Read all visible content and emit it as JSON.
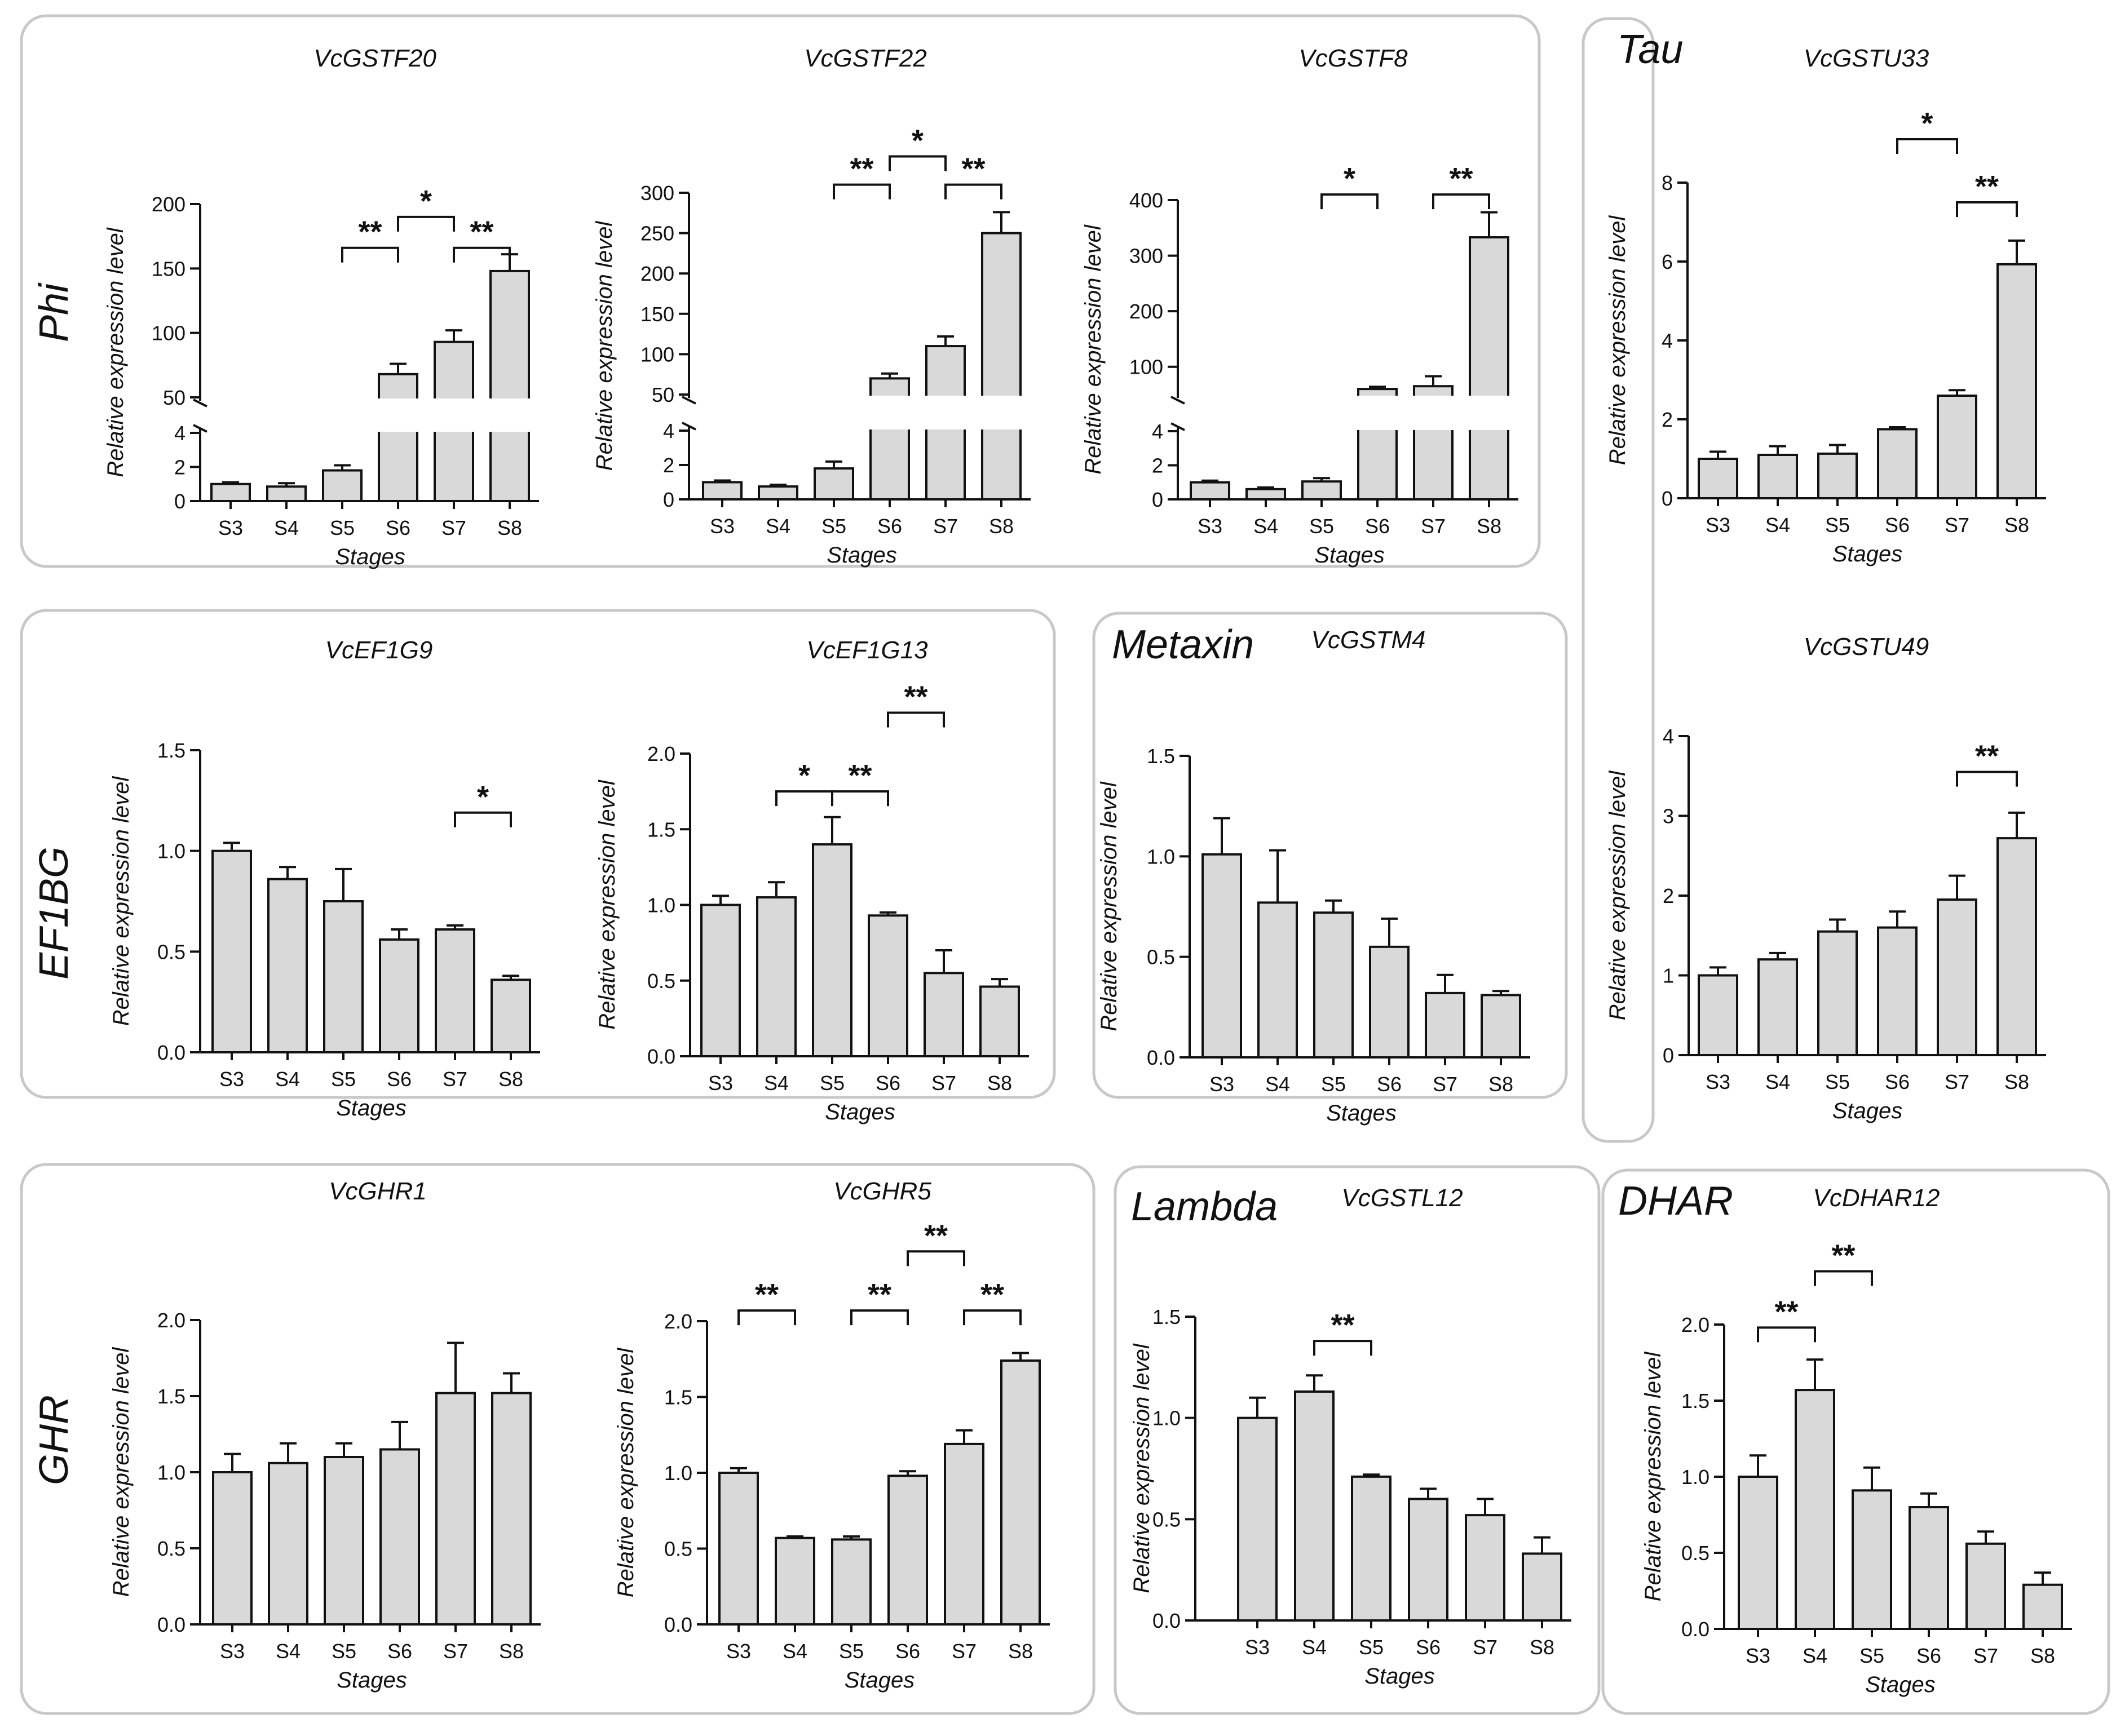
{
  "figure": {
    "y_axis_label": "Relative expression level",
    "x_axis_label": "Stages",
    "stages": [
      "S3",
      "S4",
      "S5",
      "S6",
      "S7",
      "S8"
    ],
    "bar_color": "#d9d9d9",
    "frame_color": "#c8c8c8"
  },
  "groups": [
    {
      "id": "phi",
      "label": "Phi"
    },
    {
      "id": "tau",
      "label": "Tau"
    },
    {
      "id": "ef1bg",
      "label": "EF1BG"
    },
    {
      "id": "metaxin",
      "label": "Metaxin"
    },
    {
      "id": "ghr",
      "label": "GHR"
    },
    {
      "id": "lambda",
      "label": "Lambda"
    },
    {
      "id": "dhar",
      "label": "DHAR"
    }
  ],
  "chart_data": [
    {
      "type": "bar",
      "title": "VcGSTF20",
      "xlabel": "Stages",
      "ylabel": "Relative expression level",
      "categories": [
        "S3",
        "S4",
        "S5",
        "S6",
        "S7",
        "S8"
      ],
      "values": [
        1.0,
        0.85,
        1.8,
        68,
        93,
        148
      ],
      "errors": [
        0.1,
        0.2,
        0.3,
        8,
        9,
        13
      ],
      "axis_break": {
        "lower": [
          0,
          4
        ],
        "upper": [
          50,
          200
        ]
      },
      "y_ticks_lower": [
        "0",
        "2",
        "4"
      ],
      "y_ticks_upper": [
        "50",
        "100",
        "150",
        "200"
      ],
      "significance": [
        {
          "from": "S5",
          "to": "S6",
          "label": "**",
          "y": 166
        },
        {
          "from": "S7",
          "to": "S8",
          "label": "**",
          "y": 166
        },
        {
          "from": "S6",
          "to": "S7",
          "label": "*",
          "y": 190
        }
      ]
    },
    {
      "type": "bar",
      "title": "VcGSTF22",
      "xlabel": "Stages",
      "ylabel": "Relative expression level",
      "categories": [
        "S3",
        "S4",
        "S5",
        "S6",
        "S7",
        "S8"
      ],
      "values": [
        1.0,
        0.75,
        1.8,
        70,
        110,
        250
      ],
      "errors": [
        0.1,
        0.1,
        0.4,
        6,
        12,
        26
      ],
      "axis_break": {
        "lower": [
          0,
          4
        ],
        "upper": [
          50,
          300
        ]
      },
      "y_ticks_lower": [
        "0",
        "2",
        "4"
      ],
      "y_ticks_upper": [
        "50",
        "100",
        "150",
        "200",
        "250",
        "300"
      ],
      "significance": [
        {
          "from": "S5",
          "to": "S6",
          "label": "**",
          "y": 310
        },
        {
          "from": "S7",
          "to": "S8",
          "label": "**",
          "y": 310
        },
        {
          "from": "S6",
          "to": "S7",
          "label": "*",
          "y": 345
        }
      ]
    },
    {
      "type": "bar",
      "title": "VcGSTF8",
      "xlabel": "Stages",
      "ylabel": "Relative expression level",
      "categories": [
        "S3",
        "S4",
        "S5",
        "S6",
        "S7",
        "S8"
      ],
      "values": [
        1.0,
        0.6,
        1.05,
        60,
        65,
        333
      ],
      "errors": [
        0.1,
        0.1,
        0.2,
        4,
        18,
        45
      ],
      "axis_break": {
        "lower": [
          0,
          4
        ],
        "upper": [
          50,
          400
        ]
      },
      "y_ticks_lower": [
        "0",
        "2",
        "4"
      ],
      "y_ticks_upper": [
        "100",
        "200",
        "300",
        "400"
      ],
      "significance": [
        {
          "from": "S5",
          "to": "S6",
          "label": "*",
          "y": 410
        },
        {
          "from": "S7",
          "to": "S8",
          "label": "**",
          "y": 410
        }
      ]
    },
    {
      "type": "bar",
      "title": "VcGSTU33",
      "xlabel": "Stages",
      "ylabel": "Relative expression level",
      "categories": [
        "S3",
        "S4",
        "S5",
        "S6",
        "S7",
        "S8"
      ],
      "values": [
        1.0,
        1.1,
        1.13,
        1.75,
        2.6,
        5.93
      ],
      "errors": [
        0.18,
        0.22,
        0.22,
        0.05,
        0.14,
        0.6
      ],
      "ylim": [
        0,
        8
      ],
      "y_ticks": [
        "0",
        "2",
        "4",
        "6",
        "8"
      ],
      "significance": [
        {
          "from": "S7",
          "to": "S8",
          "label": "**",
          "y": 7.5
        },
        {
          "from": "S6",
          "to": "S7",
          "label": "*",
          "y": 9.1
        }
      ]
    },
    {
      "type": "bar",
      "title": "VcEF1G9",
      "xlabel": "Stages",
      "ylabel": "Relative expression level",
      "categories": [
        "S3",
        "S4",
        "S5",
        "S6",
        "S7",
        "S8"
      ],
      "values": [
        1.0,
        0.86,
        0.75,
        0.56,
        0.61,
        0.36
      ],
      "errors": [
        0.04,
        0.06,
        0.16,
        0.05,
        0.02,
        0.02
      ],
      "ylim": [
        0,
        1.5
      ],
      "y_ticks": [
        "0.0",
        "0.5",
        "1.0",
        "1.5"
      ],
      "significance": [
        {
          "from": "S7",
          "to": "S8",
          "label": "*",
          "y": 1.19
        }
      ]
    },
    {
      "type": "bar",
      "title": "VcEF1G13",
      "xlabel": "Stages",
      "ylabel": "Relative expression level",
      "categories": [
        "S3",
        "S4",
        "S5",
        "S6",
        "S7",
        "S8"
      ],
      "values": [
        1.0,
        1.05,
        1.4,
        0.93,
        0.55,
        0.46
      ],
      "errors": [
        0.06,
        0.1,
        0.18,
        0.02,
        0.15,
        0.05
      ],
      "ylim": [
        0,
        2.0
      ],
      "y_ticks": [
        "0.0",
        "0.5",
        "1.0",
        "1.5",
        "2.0"
      ],
      "significance": [
        {
          "from": "S4",
          "to": "S5",
          "label": "*",
          "y": 1.75
        },
        {
          "from": "S5",
          "to": "S6",
          "label": "**",
          "y": 1.75
        },
        {
          "from": "S6",
          "to": "S7",
          "label": "**",
          "y": 2.27
        }
      ]
    },
    {
      "type": "bar",
      "title": "VcGSTM4",
      "xlabel": "Stages",
      "ylabel": "Relative expression level",
      "categories": [
        "S3",
        "S4",
        "S5",
        "S6",
        "S7",
        "S8"
      ],
      "values": [
        1.01,
        0.77,
        0.72,
        0.55,
        0.32,
        0.31
      ],
      "errors": [
        0.18,
        0.26,
        0.06,
        0.14,
        0.09,
        0.02
      ],
      "ylim": [
        0,
        1.5
      ],
      "y_ticks": [
        "0.0",
        "0.5",
        "1.0",
        "1.5"
      ],
      "significance": []
    },
    {
      "type": "bar",
      "title": "VcGSTU49",
      "xlabel": "Stages",
      "ylabel": "Relative expression level",
      "categories": [
        "S3",
        "S4",
        "S5",
        "S6",
        "S7",
        "S8"
      ],
      "values": [
        1.0,
        1.2,
        1.55,
        1.6,
        1.95,
        2.72
      ],
      "errors": [
        0.1,
        0.08,
        0.15,
        0.2,
        0.3,
        0.32
      ],
      "ylim": [
        0,
        4
      ],
      "y_ticks": [
        "0",
        "1",
        "2",
        "3",
        "4"
      ],
      "significance": [
        {
          "from": "S7",
          "to": "S8",
          "label": "**",
          "y": 3.55
        }
      ]
    },
    {
      "type": "bar",
      "title": "VcGHR1",
      "xlabel": "Stages",
      "ylabel": "Relative expression level",
      "categories": [
        "S3",
        "S4",
        "S5",
        "S6",
        "S7",
        "S8"
      ],
      "values": [
        1.0,
        1.06,
        1.1,
        1.15,
        1.52,
        1.52
      ],
      "errors": [
        0.12,
        0.13,
        0.09,
        0.18,
        0.33,
        0.13
      ],
      "ylim": [
        0,
        2.0
      ],
      "y_ticks": [
        "0.0",
        "0.5",
        "1.0",
        "1.5",
        "2.0"
      ],
      "significance": []
    },
    {
      "type": "bar",
      "title": "VcGHR5",
      "xlabel": "Stages",
      "ylabel": "Relative expression level",
      "categories": [
        "S3",
        "S4",
        "S5",
        "S6",
        "S7",
        "S8"
      ],
      "values": [
        1.0,
        0.57,
        0.56,
        0.98,
        1.19,
        1.74
      ],
      "errors": [
        0.03,
        0.01,
        0.02,
        0.03,
        0.09,
        0.05
      ],
      "ylim": [
        0,
        2.0
      ],
      "y_ticks": [
        "0.0",
        "0.5",
        "1.0",
        "1.5",
        "2.0"
      ],
      "significance": [
        {
          "from": "S3",
          "to": "S4",
          "label": "**",
          "y": 2.07
        },
        {
          "from": "S5",
          "to": "S6",
          "label": "**",
          "y": 2.07
        },
        {
          "from": "S7",
          "to": "S8",
          "label": "**",
          "y": 2.07
        },
        {
          "from": "S6",
          "to": "S7",
          "label": "**",
          "y": 2.46
        }
      ]
    },
    {
      "type": "bar",
      "title": "VcGSTL12",
      "xlabel": "Stages",
      "ylabel": "Relative expression level",
      "categories": [
        "S3",
        "S4",
        "S5",
        "S6",
        "S7",
        "S8"
      ],
      "values": [
        1.0,
        1.13,
        0.71,
        0.6,
        0.52,
        0.33
      ],
      "errors": [
        0.1,
        0.08,
        0.01,
        0.05,
        0.08,
        0.08
      ],
      "ylim": [
        0,
        1.5
      ],
      "y_ticks": [
        "0.0",
        "0.5",
        "1.0",
        "1.5"
      ],
      "significance": [
        {
          "from": "S4",
          "to": "S5",
          "label": "**",
          "y": 1.38
        }
      ]
    },
    {
      "type": "bar",
      "title": "VcDHAR12",
      "xlabel": "Stages",
      "ylabel": "Relative expression level",
      "categories": [
        "S3",
        "S4",
        "S5",
        "S6",
        "S7",
        "S8"
      ],
      "values": [
        1.0,
        1.57,
        0.91,
        0.8,
        0.56,
        0.29
      ],
      "errors": [
        0.14,
        0.2,
        0.15,
        0.09,
        0.08,
        0.08
      ],
      "ylim": [
        0,
        2.0
      ],
      "y_ticks": [
        "0.0",
        "0.5",
        "1.0",
        "1.5",
        "2.0"
      ],
      "significance": [
        {
          "from": "S3",
          "to": "S4",
          "label": "**",
          "y": 1.98
        },
        {
          "from": "S4",
          "to": "S5",
          "label": "**",
          "y": 2.35
        }
      ]
    }
  ]
}
